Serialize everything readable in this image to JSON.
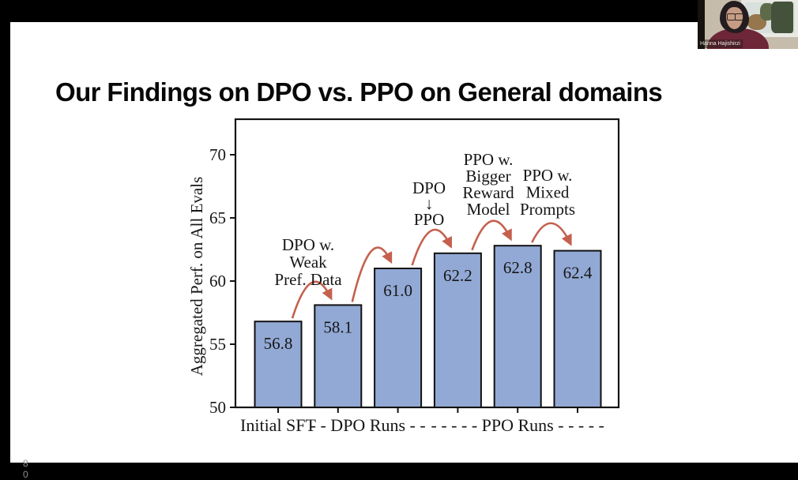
{
  "slide": {
    "title": "Our Findings on DPO vs. PPO on General domains",
    "page_number": "80"
  },
  "webcam": {
    "participant_name": "Hanna Hajishirzi"
  },
  "chart_data": {
    "type": "bar",
    "title": "",
    "values": [
      56.8,
      58.1,
      61.0,
      62.2,
      62.8,
      62.4
    ],
    "bar_value_labels": [
      "56.8",
      "58.1",
      "61.0",
      "62.2",
      "62.8",
      "62.4"
    ],
    "groups": [
      {
        "label": "Initial SFT",
        "bar_indexes": [
          0
        ]
      },
      {
        "label": "- - DPO Runs - -",
        "bar_indexes": [
          1,
          2
        ]
      },
      {
        "label": "- - - - - PPO Runs - - - - -",
        "bar_indexes": [
          3,
          4,
          5
        ]
      }
    ],
    "ylabel": "Aggregated Perf. on All Evals",
    "xlabel": "",
    "yticks": [
      50,
      55,
      60,
      65,
      70
    ],
    "ylim": [
      50,
      72.8
    ],
    "grid": false,
    "legend": "none",
    "annotations": [
      {
        "lines": [
          "DPO w.",
          "Weak",
          "Pref. Data"
        ]
      },
      {
        "lines": [
          "DPO",
          "↓",
          "PPO"
        ]
      },
      {
        "lines": [
          "PPO w.",
          "Bigger",
          "Reward",
          "Model"
        ]
      },
      {
        "lines": [
          "PPO w.",
          "Mixed",
          "Prompts"
        ]
      }
    ],
    "arrows_between_bars": [
      [
        0,
        1
      ],
      [
        1,
        2
      ],
      [
        2,
        3
      ],
      [
        3,
        4
      ],
      [
        4,
        5
      ]
    ],
    "colors": {
      "bar_fill": "#92a9d5",
      "bar_stroke": "#111111",
      "arrow": "#c4614e",
      "text": "#161616"
    }
  }
}
